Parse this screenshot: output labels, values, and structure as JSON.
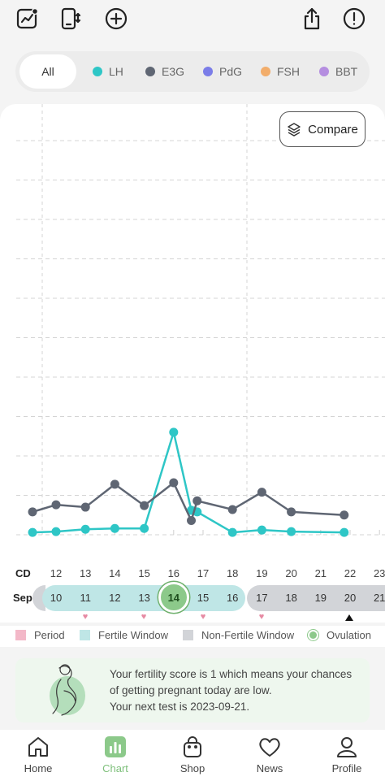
{
  "filters": [
    {
      "label": "All",
      "color": ""
    },
    {
      "label": "LH",
      "color": "#2ec6c6"
    },
    {
      "label": "E3G",
      "color": "#5f6673"
    },
    {
      "label": "PdG",
      "color": "#7b7de8"
    },
    {
      "label": "FSH",
      "color": "#f2ad6b"
    },
    {
      "label": "BBT",
      "color": "#b58ee0"
    }
  ],
  "compare_label": "Compare",
  "chart_data": {
    "type": "line",
    "x": [
      11,
      12,
      13,
      14,
      15,
      16,
      17,
      18,
      19,
      20,
      21,
      22
    ],
    "series": [
      {
        "name": "LH",
        "color": "#2ec6c6",
        "points": [
          [
            10.2,
            0.3
          ],
          [
            11,
            0.4
          ],
          [
            12,
            0.7
          ],
          [
            13,
            0.8
          ],
          [
            14,
            0.8
          ],
          [
            15,
            13.0
          ],
          [
            15.6,
            3.1
          ],
          [
            15.8,
            2.9
          ],
          [
            17,
            0.3
          ],
          [
            18,
            0.6
          ],
          [
            19,
            0.4
          ],
          [
            20.8,
            0.3
          ]
        ]
      },
      {
        "name": "E3G",
        "color": "#5f6673",
        "points": [
          [
            10.2,
            2.9
          ],
          [
            11,
            3.8
          ],
          [
            12,
            3.5
          ],
          [
            13,
            6.4
          ],
          [
            14,
            3.7
          ],
          [
            15,
            6.6
          ],
          [
            15.6,
            1.8
          ],
          [
            15.8,
            4.3
          ],
          [
            17,
            3.2
          ],
          [
            18,
            5.4
          ],
          [
            19,
            2.9
          ],
          [
            20.8,
            2.5
          ]
        ]
      }
    ],
    "ylim": [
      0,
      50
    ],
    "grid": true,
    "legend": "none"
  },
  "cycle_days": {
    "label": "CD",
    "values": [
      "12",
      "13",
      "14",
      "15",
      "16",
      "17",
      "18",
      "19",
      "20",
      "21",
      "22",
      "23"
    ]
  },
  "dates": {
    "month": "Sep",
    "values": [
      "10",
      "11",
      "12",
      "13",
      "14",
      "15",
      "16",
      "17",
      "18",
      "19",
      "20",
      "21"
    ],
    "ovulation_date": "14",
    "fertile_color": "#bfe6e6",
    "nonfertile_color": "#d2d4d8",
    "ovulation_color": "#8cc98a"
  },
  "legend": [
    {
      "label": "Period",
      "color": "#f3b8c8"
    },
    {
      "label": "Fertile Window",
      "color": "#bfe6e6"
    },
    {
      "label": "Non-Fertile Window",
      "color": "#d2d4d8"
    },
    {
      "label": "Ovulation",
      "color": "#8cc98a"
    }
  ],
  "score_message": {
    "line1": "Your fertility score is 1 which means your chances",
    "line2": "of getting pregnant today are low.",
    "line3": "Your next test is 2023-09-21."
  },
  "nav": [
    {
      "label": "Home",
      "icon": "home-icon"
    },
    {
      "label": "Chart",
      "icon": "chart-icon"
    },
    {
      "label": "Shop",
      "icon": "shopping-bag-icon"
    },
    {
      "label": "News",
      "icon": "heart-chat-icon"
    },
    {
      "label": "Profile",
      "icon": "person-icon"
    }
  ]
}
